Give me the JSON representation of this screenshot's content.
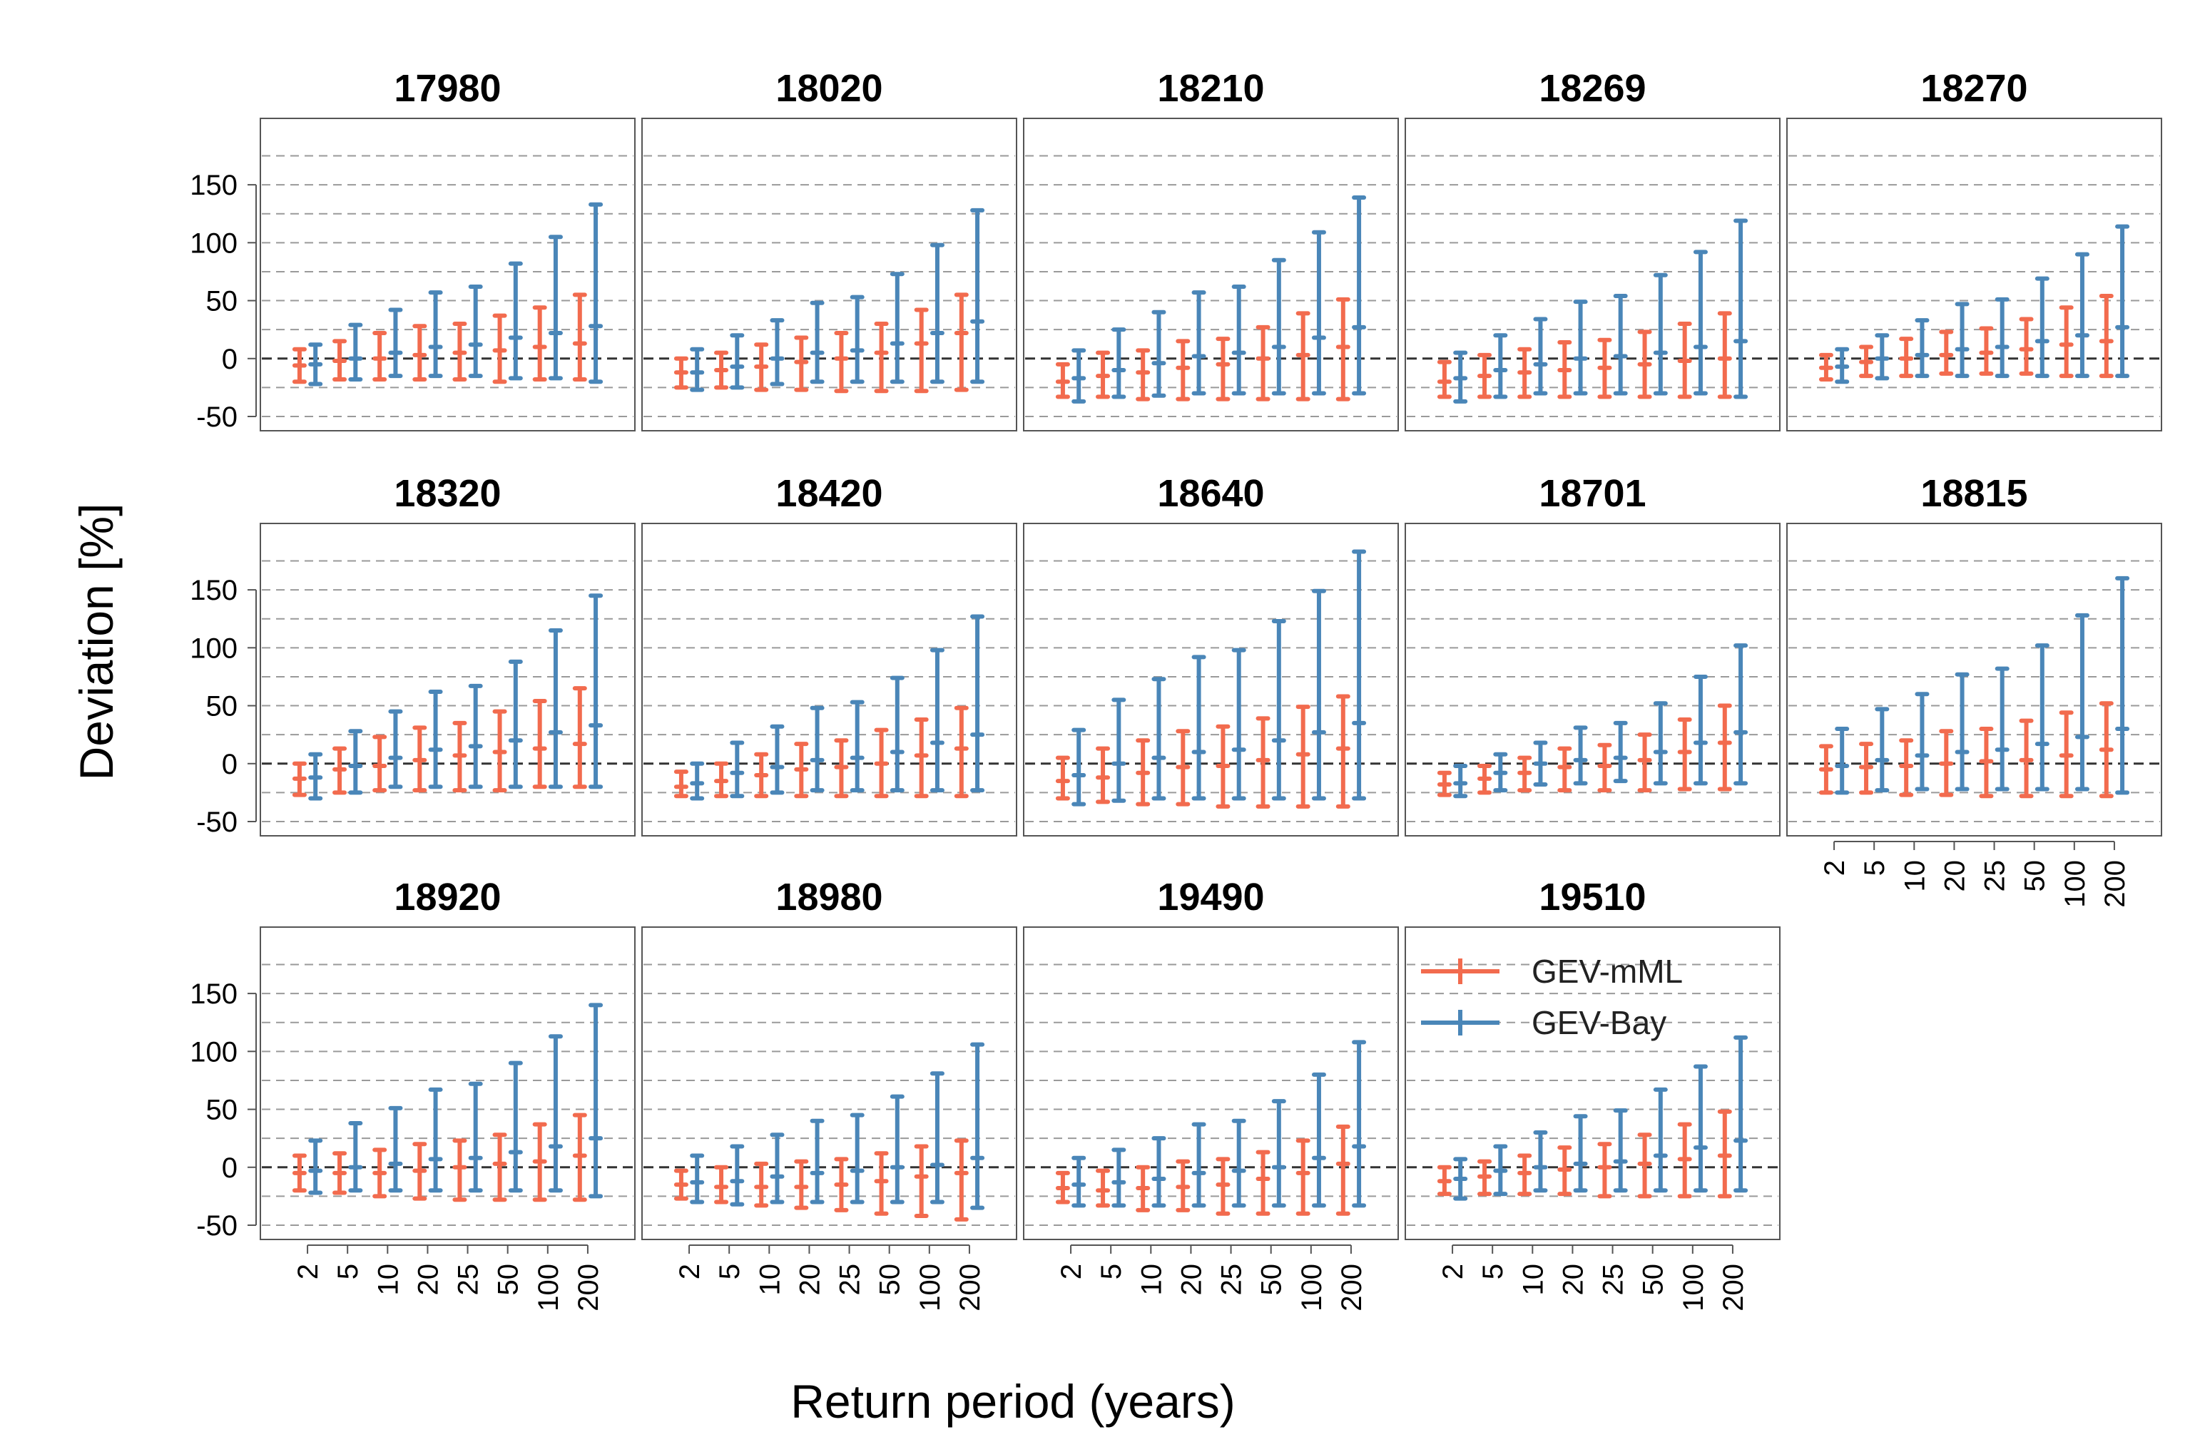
{
  "chart_data": {
    "type": "errorbar",
    "xlabel": "Return period (years)",
    "ylabel": "Deviation [%]",
    "categories": [
      "2",
      "5",
      "10",
      "20",
      "25",
      "50",
      "100",
      "200"
    ],
    "ylim": [
      -50,
      195
    ],
    "yticks": [
      -50,
      0,
      50,
      100,
      150
    ],
    "gridlines": [
      -50,
      -25,
      25,
      50,
      75,
      100,
      125,
      150,
      175
    ],
    "zero_line": 0,
    "legend": {
      "placement": "top-left",
      "entries": [
        {
          "name": "GEV-mML",
          "color": "#f26b4e"
        },
        {
          "name": "GEV-Bay",
          "color": "#4a86b8"
        }
      ]
    },
    "series_colors": {
      "GEV-mML": "#f26b4e",
      "GEV-Bay": "#4a86b8"
    },
    "panels": [
      {
        "title": "17980",
        "GEV-mML": [
          [
            -20,
            -6,
            8
          ],
          [
            -18,
            -2,
            15
          ],
          [
            -18,
            0,
            22
          ],
          [
            -18,
            3,
            28
          ],
          [
            -18,
            5,
            30
          ],
          [
            -20,
            7,
            37
          ],
          [
            -18,
            10,
            44
          ],
          [
            -18,
            13,
            55
          ]
        ],
        "GEV-Bay": [
          [
            -22,
            -5,
            12
          ],
          [
            -18,
            0,
            29
          ],
          [
            -15,
            5,
            42
          ],
          [
            -15,
            10,
            57
          ],
          [
            -15,
            12,
            62
          ],
          [
            -17,
            18,
            82
          ],
          [
            -17,
            22,
            105
          ],
          [
            -20,
            28,
            133
          ]
        ]
      },
      {
        "title": "18020",
        "GEV-mML": [
          [
            -25,
            -12,
            0
          ],
          [
            -25,
            -10,
            5
          ],
          [
            -27,
            -7,
            12
          ],
          [
            -27,
            -3,
            18
          ],
          [
            -28,
            0,
            22
          ],
          [
            -28,
            5,
            30
          ],
          [
            -28,
            13,
            42
          ],
          [
            -27,
            22,
            55
          ]
        ],
        "GEV-Bay": [
          [
            -27,
            -12,
            8
          ],
          [
            -25,
            -7,
            20
          ],
          [
            -22,
            0,
            33
          ],
          [
            -20,
            5,
            48
          ],
          [
            -20,
            7,
            53
          ],
          [
            -20,
            13,
            73
          ],
          [
            -20,
            22,
            98
          ],
          [
            -20,
            32,
            128
          ]
        ]
      },
      {
        "title": "18210",
        "GEV-mML": [
          [
            -33,
            -20,
            -5
          ],
          [
            -33,
            -15,
            5
          ],
          [
            -35,
            -12,
            7
          ],
          [
            -35,
            -8,
            15
          ],
          [
            -35,
            -5,
            17
          ],
          [
            -35,
            0,
            27
          ],
          [
            -35,
            3,
            39
          ],
          [
            -35,
            10,
            51
          ]
        ],
        "GEV-Bay": [
          [
            -37,
            -17,
            7
          ],
          [
            -33,
            -10,
            25
          ],
          [
            -32,
            -4,
            40
          ],
          [
            -30,
            2,
            57
          ],
          [
            -30,
            5,
            62
          ],
          [
            -30,
            10,
            85
          ],
          [
            -30,
            18,
            109
          ],
          [
            -30,
            27,
            139
          ]
        ]
      },
      {
        "title": "18269",
        "GEV-mML": [
          [
            -33,
            -20,
            -3
          ],
          [
            -33,
            -15,
            3
          ],
          [
            -33,
            -12,
            8
          ],
          [
            -33,
            -10,
            14
          ],
          [
            -33,
            -8,
            16
          ],
          [
            -33,
            -5,
            23
          ],
          [
            -33,
            -2,
            30
          ],
          [
            -33,
            0,
            39
          ]
        ],
        "GEV-Bay": [
          [
            -37,
            -17,
            5
          ],
          [
            -33,
            -10,
            20
          ],
          [
            -30,
            -5,
            34
          ],
          [
            -30,
            0,
            49
          ],
          [
            -30,
            2,
            54
          ],
          [
            -30,
            5,
            72
          ],
          [
            -30,
            10,
            92
          ],
          [
            -33,
            15,
            119
          ]
        ]
      },
      {
        "title": "18270",
        "GEV-mML": [
          [
            -18,
            -8,
            3
          ],
          [
            -15,
            -3,
            10
          ],
          [
            -15,
            0,
            17
          ],
          [
            -13,
            3,
            23
          ],
          [
            -13,
            5,
            26
          ],
          [
            -13,
            8,
            34
          ],
          [
            -15,
            12,
            44
          ],
          [
            -15,
            15,
            54
          ]
        ],
        "GEV-Bay": [
          [
            -20,
            -7,
            8
          ],
          [
            -17,
            0,
            20
          ],
          [
            -15,
            3,
            33
          ],
          [
            -15,
            8,
            47
          ],
          [
            -15,
            10,
            51
          ],
          [
            -15,
            15,
            69
          ],
          [
            -15,
            20,
            90
          ],
          [
            -15,
            27,
            114
          ]
        ]
      },
      {
        "title": "18320",
        "GEV-mML": [
          [
            -27,
            -13,
            0
          ],
          [
            -25,
            -5,
            13
          ],
          [
            -23,
            -2,
            23
          ],
          [
            -23,
            3,
            31
          ],
          [
            -23,
            7,
            35
          ],
          [
            -23,
            10,
            45
          ],
          [
            -20,
            13,
            54
          ],
          [
            -20,
            17,
            65
          ]
        ],
        "GEV-Bay": [
          [
            -30,
            -12,
            8
          ],
          [
            -25,
            -2,
            28
          ],
          [
            -20,
            5,
            45
          ],
          [
            -20,
            12,
            62
          ],
          [
            -20,
            15,
            67
          ],
          [
            -20,
            20,
            88
          ],
          [
            -20,
            27,
            115
          ],
          [
            -20,
            33,
            145
          ]
        ]
      },
      {
        "title": "18420",
        "GEV-mML": [
          [
            -28,
            -20,
            -7
          ],
          [
            -28,
            -15,
            0
          ],
          [
            -28,
            -10,
            8
          ],
          [
            -28,
            -5,
            17
          ],
          [
            -28,
            -3,
            20
          ],
          [
            -28,
            0,
            29
          ],
          [
            -28,
            7,
            38
          ],
          [
            -28,
            13,
            48
          ]
        ],
        "GEV-Bay": [
          [
            -30,
            -17,
            0
          ],
          [
            -28,
            -8,
            18
          ],
          [
            -25,
            -3,
            32
          ],
          [
            -23,
            3,
            48
          ],
          [
            -23,
            5,
            53
          ],
          [
            -23,
            10,
            74
          ],
          [
            -23,
            18,
            98
          ],
          [
            -23,
            25,
            127
          ]
        ]
      },
      {
        "title": "18640",
        "GEV-mML": [
          [
            -30,
            -15,
            5
          ],
          [
            -33,
            -12,
            13
          ],
          [
            -35,
            -8,
            20
          ],
          [
            -35,
            -3,
            28
          ],
          [
            -37,
            -2,
            32
          ],
          [
            -37,
            3,
            39
          ],
          [
            -37,
            8,
            49
          ],
          [
            -37,
            13,
            58
          ]
        ],
        "GEV-Bay": [
          [
            -35,
            -10,
            29
          ],
          [
            -32,
            0,
            55
          ],
          [
            -30,
            5,
            73
          ],
          [
            -30,
            10,
            92
          ],
          [
            -30,
            12,
            98
          ],
          [
            -30,
            20,
            123
          ],
          [
            -30,
            27,
            149
          ],
          [
            -30,
            35,
            183
          ]
        ]
      },
      {
        "title": "18701",
        "GEV-mML": [
          [
            -27,
            -18,
            -8
          ],
          [
            -25,
            -13,
            -2
          ],
          [
            -23,
            -8,
            5
          ],
          [
            -23,
            -3,
            13
          ],
          [
            -23,
            -2,
            16
          ],
          [
            -23,
            3,
            25
          ],
          [
            -22,
            10,
            38
          ],
          [
            -22,
            18,
            50
          ]
        ],
        "GEV-Bay": [
          [
            -28,
            -17,
            -2
          ],
          [
            -23,
            -8,
            8
          ],
          [
            -18,
            0,
            18
          ],
          [
            -17,
            3,
            31
          ],
          [
            -15,
            5,
            35
          ],
          [
            -17,
            10,
            52
          ],
          [
            -17,
            18,
            75
          ],
          [
            -17,
            27,
            102
          ]
        ]
      },
      {
        "title": "18815",
        "GEV-mML": [
          [
            -25,
            -5,
            15
          ],
          [
            -25,
            -3,
            17
          ],
          [
            -27,
            -2,
            20
          ],
          [
            -27,
            0,
            28
          ],
          [
            -28,
            2,
            30
          ],
          [
            -28,
            3,
            37
          ],
          [
            -28,
            7,
            44
          ],
          [
            -28,
            12,
            52
          ]
        ],
        "GEV-Bay": [
          [
            -25,
            -2,
            30
          ],
          [
            -23,
            3,
            47
          ],
          [
            -22,
            7,
            60
          ],
          [
            -22,
            10,
            77
          ],
          [
            -22,
            12,
            82
          ],
          [
            -22,
            17,
            102
          ],
          [
            -22,
            23,
            128
          ],
          [
            -25,
            30,
            160
          ]
        ]
      },
      {
        "title": "18920",
        "GEV-mML": [
          [
            -20,
            -5,
            10
          ],
          [
            -22,
            -5,
            12
          ],
          [
            -25,
            -5,
            15
          ],
          [
            -27,
            -3,
            20
          ],
          [
            -28,
            0,
            23
          ],
          [
            -28,
            3,
            28
          ],
          [
            -28,
            5,
            37
          ],
          [
            -28,
            10,
            45
          ]
        ],
        "GEV-Bay": [
          [
            -22,
            -3,
            23
          ],
          [
            -20,
            0,
            38
          ],
          [
            -20,
            3,
            51
          ],
          [
            -20,
            7,
            67
          ],
          [
            -20,
            8,
            72
          ],
          [
            -20,
            13,
            90
          ],
          [
            -20,
            18,
            113
          ],
          [
            -25,
            25,
            140
          ]
        ]
      },
      {
        "title": "18980",
        "GEV-mML": [
          [
            -27,
            -15,
            -3
          ],
          [
            -30,
            -17,
            0
          ],
          [
            -33,
            -17,
            3
          ],
          [
            -35,
            -17,
            5
          ],
          [
            -37,
            -15,
            7
          ],
          [
            -40,
            -12,
            12
          ],
          [
            -42,
            -8,
            18
          ],
          [
            -45,
            -5,
            23
          ]
        ],
        "GEV-Bay": [
          [
            -30,
            -13,
            10
          ],
          [
            -32,
            -12,
            18
          ],
          [
            -30,
            -8,
            28
          ],
          [
            -30,
            -5,
            40
          ],
          [
            -30,
            -3,
            45
          ],
          [
            -30,
            0,
            61
          ],
          [
            -30,
            2,
            81
          ],
          [
            -35,
            8,
            106
          ]
        ]
      },
      {
        "title": "19490",
        "GEV-mML": [
          [
            -30,
            -18,
            -5
          ],
          [
            -33,
            -20,
            -3
          ],
          [
            -37,
            -18,
            0
          ],
          [
            -37,
            -17,
            5
          ],
          [
            -40,
            -15,
            7
          ],
          [
            -40,
            -10,
            13
          ],
          [
            -40,
            -5,
            23
          ],
          [
            -40,
            3,
            35
          ]
        ],
        "GEV-Bay": [
          [
            -33,
            -15,
            8
          ],
          [
            -33,
            -13,
            15
          ],
          [
            -33,
            -10,
            25
          ],
          [
            -33,
            -5,
            37
          ],
          [
            -33,
            -3,
            40
          ],
          [
            -33,
            0,
            57
          ],
          [
            -33,
            8,
            80
          ],
          [
            -33,
            18,
            108
          ]
        ]
      },
      {
        "title": "19510",
        "GEV-mML": [
          [
            -23,
            -12,
            0
          ],
          [
            -23,
            -8,
            5
          ],
          [
            -23,
            -5,
            10
          ],
          [
            -23,
            -2,
            17
          ],
          [
            -25,
            0,
            20
          ],
          [
            -25,
            3,
            28
          ],
          [
            -25,
            7,
            37
          ],
          [
            -25,
            10,
            48
          ]
        ],
        "GEV-Bay": [
          [
            -27,
            -10,
            7
          ],
          [
            -23,
            -3,
            18
          ],
          [
            -20,
            0,
            30
          ],
          [
            -20,
            3,
            44
          ],
          [
            -20,
            5,
            49
          ],
          [
            -20,
            10,
            67
          ],
          [
            -20,
            17,
            87
          ],
          [
            -20,
            23,
            112
          ]
        ]
      }
    ]
  }
}
